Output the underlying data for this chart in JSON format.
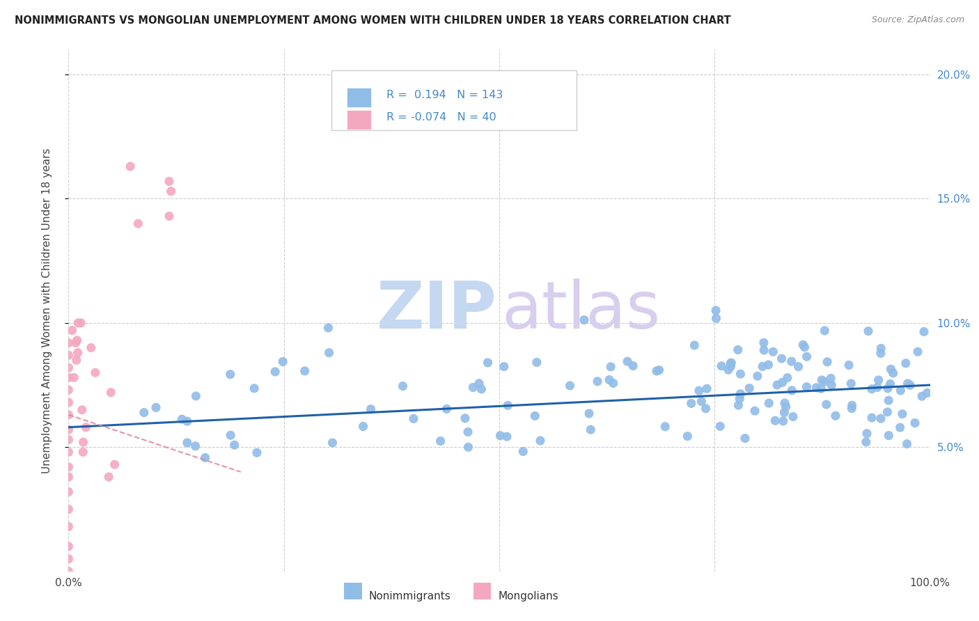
{
  "title": "NONIMMIGRANTS VS MONGOLIAN UNEMPLOYMENT AMONG WOMEN WITH CHILDREN UNDER 18 YEARS CORRELATION CHART",
  "source": "Source: ZipAtlas.com",
  "ylabel": "Unemployment Among Women with Children Under 18 years",
  "legend_nonimm_R": 0.194,
  "legend_nonimm_N": 143,
  "legend_mong_R": -0.074,
  "legend_mong_N": 40,
  "label_nonimm": "Nonimmigrants",
  "label_mong": "Mongolians",
  "blue_line_color": "#2060a8",
  "pink_line_color": "#e080a0",
  "nonimm_scatter_color": "#90bce8",
  "mong_scatter_color": "#f4a8c0",
  "right_tick_color": "#4488cc",
  "xlim": [
    0.0,
    1.0
  ],
  "ylim": [
    0.0,
    0.21
  ],
  "yticks": [
    0.05,
    0.1,
    0.15,
    0.2
  ],
  "ytick_labels": [
    "5.0%",
    "10.0%",
    "15.0%",
    "20.0%"
  ],
  "xticks": [
    0.0,
    0.25,
    0.5,
    0.75,
    1.0
  ],
  "xtick_labels": [
    "0.0%",
    "",
    "",
    "",
    "100.0%"
  ],
  "blue_line_x0": 0.0,
  "blue_line_x1": 1.0,
  "blue_line_y0": 0.058,
  "blue_line_y1": 0.075,
  "pink_line_x0": 0.0,
  "pink_line_x1": 0.2,
  "pink_line_y0": 0.063,
  "pink_line_y1": 0.04
}
